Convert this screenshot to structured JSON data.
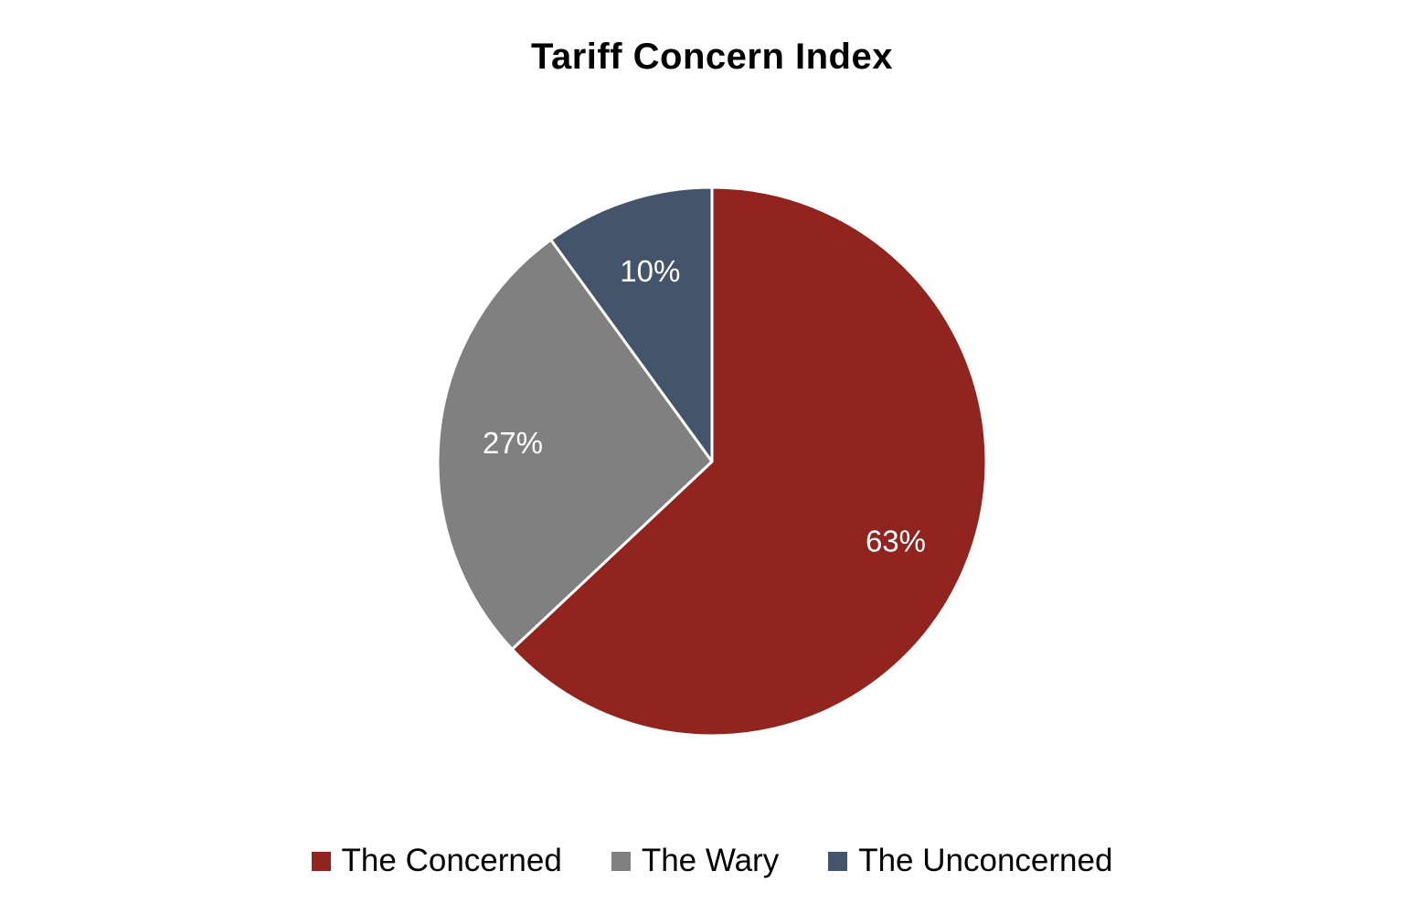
{
  "chart_data": {
    "type": "pie",
    "title": "Tariff Concern Index",
    "categories": [
      "The Concerned",
      "The Wary",
      "The Unconcerned"
    ],
    "values": [
      63,
      27,
      10
    ],
    "data_labels": [
      "63%",
      "27%",
      "10%"
    ],
    "colors": [
      "#922420",
      "#808080",
      "#44546A"
    ],
    "legend_position": "bottom",
    "start_angle": "12 o'clock",
    "direction": "clockwise"
  },
  "legend": {
    "items": [
      {
        "label": "The Concerned",
        "color": "#922420"
      },
      {
        "label": "The Wary",
        "color": "#808080"
      },
      {
        "label": "The Unconcerned",
        "color": "#44546A"
      }
    ]
  }
}
